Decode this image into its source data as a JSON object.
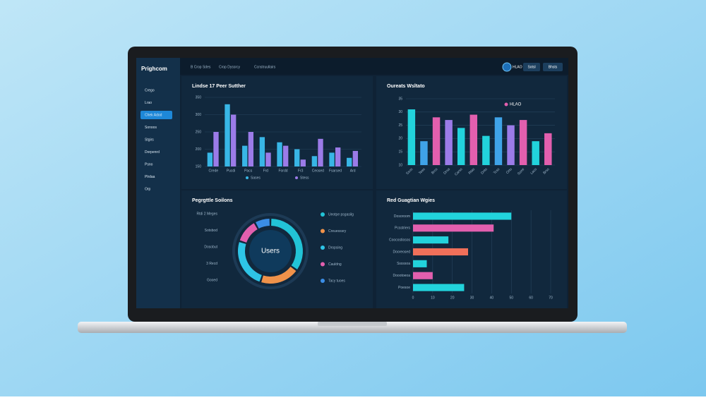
{
  "sidebar": {
    "brand": "Prighcom",
    "items": [
      "Crego",
      "Lrao",
      "Chek Adod",
      "Sonoos",
      "Stgirs",
      "Dorpenrd",
      "Psno",
      "Plrdaa",
      "Orp"
    ],
    "active_item": 2
  },
  "topbar": {
    "links": [
      "B Crop Sdes",
      "Crop Dyssrcy",
      "Ccnstruullairs"
    ],
    "badge": "HLAO",
    "buttons": [
      "Sotsl",
      "Bhsts"
    ]
  },
  "chart_data": [
    {
      "type": "bar",
      "title": "Lindse 17 Peer Sutther",
      "categories": [
        "Crede",
        "Pucdi",
        "Pacs",
        "Frd",
        "Fordd",
        "Fr3",
        "Ceosed",
        "Fsarsed",
        "Ard"
      ],
      "series": [
        {
          "name": "Sases",
          "color": "#38b6e6",
          "values": [
            190,
            330,
            210,
            235,
            220,
            200,
            180,
            190,
            175
          ]
        },
        {
          "name": "Stess",
          "color": "#9b7be8",
          "values": [
            250,
            300,
            250,
            190,
            210,
            170,
            230,
            205,
            195
          ]
        }
      ],
      "ylim": [
        150,
        350
      ],
      "yticks": [
        150,
        200,
        250,
        300,
        350
      ],
      "grid": true
    },
    {
      "type": "bar",
      "title": "Oureats Wsltato",
      "legend": "HLAO",
      "legend_color": "#e25fae",
      "categories": [
        "Ssos",
        "Tees",
        "Brcs",
        "Drsa",
        "Carss",
        "Rtas",
        "Dnts",
        "Tcss",
        "Orts",
        "Ssmr",
        "Lacs",
        "Brss"
      ],
      "values": [
        31,
        19,
        28,
        27,
        24,
        29,
        21,
        28,
        25,
        27,
        19,
        22
      ],
      "colors": [
        "#22d3dc",
        "#3fa3e8",
        "#e25fae",
        "#9b7be8",
        "#22d3dc",
        "#e25fae",
        "#22d3dc",
        "#3fa3e8",
        "#9b7be8",
        "#e25fae",
        "#22d3dc",
        "#e25fae"
      ],
      "ylim": [
        10,
        35
      ],
      "yticks": [
        10,
        15,
        20,
        25,
        30,
        35
      ],
      "grid": true
    },
    {
      "type": "donut",
      "title": "Pegrgttle Soilons",
      "center_label": "Users",
      "annotations": [
        "Rtdi 2 Meges",
        "Sotsbod",
        "Dosobut",
        "3 Recd",
        "Gooed"
      ],
      "categories": [
        "Ueotpe psgasilg",
        "Creuesssry",
        "Dropsing",
        "Cauldng",
        "Tacy tuoes"
      ],
      "values": [
        35,
        20,
        25,
        12,
        8
      ],
      "colors": [
        "#22c3d6",
        "#f0924a",
        "#2ec4e6",
        "#e25fae",
        "#3b8ee6"
      ]
    },
    {
      "type": "hbar",
      "title": "Red Guagtian Wgies",
      "categories": [
        "Dosoroom",
        "Pcsstriers",
        "Coocostiosos",
        "Dooreosed",
        "Sssssoa",
        "Doootoeoa",
        "Poesoe"
      ],
      "values": [
        50,
        41,
        18,
        28,
        7,
        10,
        26
      ],
      "colors": [
        "#22d3dc",
        "#e25fae",
        "#22d3dc",
        "#f0705a",
        "#22d3dc",
        "#e25fae",
        "#22d3dc"
      ],
      "xlim": [
        0,
        70
      ],
      "xticks": [
        0,
        10,
        20,
        30,
        40,
        50,
        60,
        70
      ],
      "grid": true
    }
  ]
}
